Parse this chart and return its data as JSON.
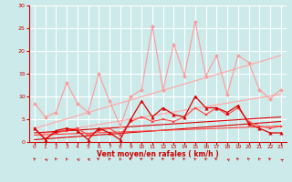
{
  "xlabel": "Vent moyen/en rafales ( km/h )",
  "xlim": [
    -0.5,
    23.5
  ],
  "ylim": [
    0,
    30
  ],
  "yticks": [
    0,
    5,
    10,
    15,
    20,
    25,
    30
  ],
  "xticks": [
    0,
    1,
    2,
    3,
    4,
    5,
    6,
    7,
    8,
    9,
    10,
    11,
    12,
    13,
    14,
    15,
    16,
    17,
    18,
    19,
    20,
    21,
    22,
    23
  ],
  "bg_color": "#cceaea",
  "grid_color": "#ffffff",
  "series": [
    {
      "x": [
        0,
        1,
        2,
        3,
        4,
        5,
        6,
        7,
        8,
        9,
        10,
        11,
        12,
        13,
        14,
        15,
        16,
        17,
        18,
        19,
        20,
        21,
        22,
        23
      ],
      "y": [
        8.5,
        5.5,
        6.5,
        13.0,
        8.5,
        6.5,
        15.0,
        9.0,
        3.5,
        10.0,
        11.5,
        25.5,
        11.5,
        21.5,
        14.5,
        26.5,
        14.5,
        19.0,
        10.5,
        19.0,
        17.5,
        11.5,
        9.5,
        11.5
      ],
      "color": "#ff9999",
      "marker": "D",
      "markersize": 2.0,
      "linewidth": 0.8,
      "zorder": 3
    },
    {
      "x": [
        0,
        1,
        2,
        3,
        4,
        5,
        6,
        7,
        8,
        9,
        10,
        11,
        12,
        13,
        14,
        15,
        16,
        17,
        18,
        19,
        20,
        21,
        22,
        23
      ],
      "y": [
        3.0,
        0.5,
        2.5,
        3.0,
        2.5,
        0.5,
        3.0,
        2.0,
        0.5,
        5.0,
        9.0,
        5.5,
        7.5,
        6.0,
        5.5,
        10.0,
        7.5,
        7.5,
        6.5,
        8.0,
        4.0,
        3.0,
        2.0,
        2.0
      ],
      "color": "#dd0000",
      "marker": "^",
      "markersize": 2.5,
      "linewidth": 0.9,
      "zorder": 5
    },
    {
      "x": [
        0,
        1,
        2,
        3,
        4,
        5,
        6,
        7,
        8,
        9,
        10,
        11,
        12,
        13,
        14,
        15,
        16,
        17,
        18,
        19,
        20,
        21,
        22,
        23
      ],
      "y": [
        3.0,
        0.8,
        2.0,
        2.5,
        3.0,
        1.5,
        2.5,
        3.0,
        1.5,
        4.5,
        5.5,
        4.5,
        5.0,
        4.5,
        5.5,
        7.5,
        6.0,
        7.5,
        6.0,
        7.5,
        4.5,
        3.5,
        3.0,
        3.5
      ],
      "color": "#ff4444",
      "marker": "s",
      "markersize": 2.0,
      "linewidth": 0.8,
      "zorder": 4
    },
    {
      "x": [
        0,
        23
      ],
      "y": [
        1.5,
        10.5
      ],
      "color": "#ffaaaa",
      "marker": "none",
      "markersize": 0,
      "linewidth": 0.9,
      "zorder": 2
    },
    {
      "x": [
        0,
        23
      ],
      "y": [
        3.0,
        19.0
      ],
      "color": "#ffaaaa",
      "marker": "none",
      "markersize": 0,
      "linewidth": 0.9,
      "zorder": 2
    },
    {
      "x": [
        0,
        23
      ],
      "y": [
        0.5,
        4.5
      ],
      "color": "#dd0000",
      "marker": "none",
      "markersize": 0,
      "linewidth": 0.8,
      "zorder": 2
    },
    {
      "x": [
        0,
        23
      ],
      "y": [
        2.0,
        5.5
      ],
      "color": "#dd0000",
      "marker": "none",
      "markersize": 0,
      "linewidth": 0.8,
      "zorder": 2
    },
    {
      "x": [
        0,
        23
      ],
      "y": [
        1.5,
        3.5
      ],
      "color": "#ff4444",
      "marker": "none",
      "markersize": 0,
      "linewidth": 0.8,
      "zorder": 2
    }
  ],
  "wind_arrows": {
    "x": [
      0,
      1,
      2,
      3,
      4,
      5,
      6,
      7,
      8,
      9,
      10,
      11,
      12,
      13,
      14,
      15,
      16,
      17,
      18,
      19,
      20,
      21,
      22,
      23
    ],
    "angles_deg": [
      200,
      225,
      200,
      195,
      230,
      240,
      215,
      200,
      195,
      215,
      210,
      205,
      205,
      215,
      210,
      200,
      200,
      215,
      225,
      210,
      205,
      200,
      210,
      220
    ]
  }
}
